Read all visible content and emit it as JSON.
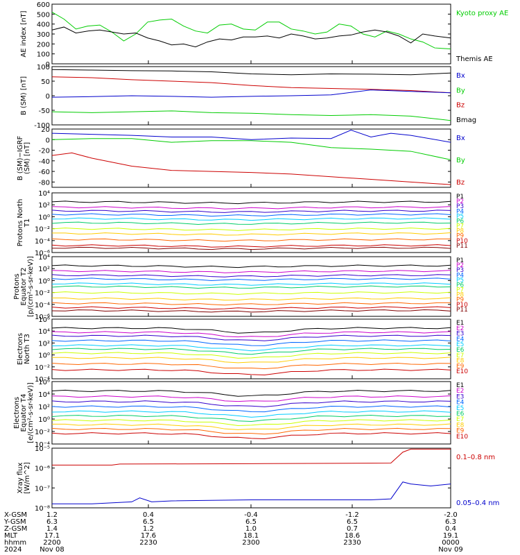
{
  "chart_data": [
    {
      "type": "line",
      "ylabel": "AE index [nT]",
      "ylim": [
        0,
        600
      ],
      "yticks": [
        "0",
        "100",
        "200",
        "300",
        "400",
        "500",
        "600"
      ],
      "legend": [
        {
          "name": "Kyoto proxy AE",
          "color": "#00cc00"
        },
        {
          "name": "Themis AE",
          "color": "#000000"
        }
      ],
      "series": [
        {
          "name": "Kyoto proxy AE",
          "color": "#00cc00",
          "x": [
            0,
            0.03,
            0.06,
            0.09,
            0.12,
            0.15,
            0.18,
            0.21,
            0.24,
            0.27,
            0.3,
            0.33,
            0.36,
            0.39,
            0.42,
            0.45,
            0.48,
            0.51,
            0.54,
            0.57,
            0.6,
            0.63,
            0.66,
            0.69,
            0.72,
            0.75,
            0.78,
            0.81,
            0.84,
            0.87,
            0.9,
            0.93,
            0.96,
            1
          ],
          "y": [
            520,
            450,
            350,
            380,
            390,
            320,
            230,
            300,
            420,
            440,
            450,
            380,
            330,
            310,
            390,
            400,
            350,
            340,
            420,
            420,
            350,
            330,
            300,
            320,
            400,
            380,
            300,
            270,
            330,
            300,
            250,
            220,
            160,
            150
          ]
        },
        {
          "name": "Themis AE",
          "color": "#000000",
          "x": [
            0,
            0.03,
            0.06,
            0.09,
            0.12,
            0.15,
            0.18,
            0.21,
            0.24,
            0.27,
            0.3,
            0.33,
            0.36,
            0.39,
            0.42,
            0.45,
            0.48,
            0.51,
            0.54,
            0.57,
            0.6,
            0.63,
            0.66,
            0.69,
            0.72,
            0.75,
            0.78,
            0.81,
            0.84,
            0.87,
            0.9,
            0.93,
            0.96,
            1
          ],
          "y": [
            340,
            370,
            310,
            330,
            340,
            320,
            300,
            310,
            260,
            230,
            190,
            200,
            170,
            220,
            250,
            240,
            270,
            270,
            280,
            260,
            300,
            280,
            250,
            260,
            280,
            290,
            320,
            340,
            320,
            280,
            210,
            300,
            280,
            260
          ]
        }
      ]
    },
    {
      "type": "line",
      "ylabel": "B (SM) [nT]",
      "ylim": [
        -100,
        100
      ],
      "yticks": [
        "100",
        "50",
        "0",
        "-50",
        "-100"
      ],
      "legend": [
        {
          "name": "Bx",
          "color": "#0000cc"
        },
        {
          "name": "By",
          "color": "#00cc00"
        },
        {
          "name": "Bz",
          "color": "#cc0000"
        },
        {
          "name": "Bmag",
          "color": "#000000"
        }
      ],
      "series": [
        {
          "name": "Bmag",
          "color": "#000000",
          "x": [
            0,
            0.1,
            0.2,
            0.3,
            0.4,
            0.5,
            0.6,
            0.7,
            0.8,
            0.9,
            1
          ],
          "y": [
            90,
            88,
            86,
            85,
            82,
            75,
            72,
            75,
            74,
            72,
            78
          ]
        },
        {
          "name": "Bz",
          "color": "#cc0000",
          "x": [
            0,
            0.1,
            0.2,
            0.3,
            0.4,
            0.5,
            0.6,
            0.7,
            0.8,
            0.9,
            1
          ],
          "y": [
            65,
            62,
            55,
            50,
            45,
            35,
            28,
            25,
            22,
            18,
            10
          ]
        },
        {
          "name": "Bx",
          "color": "#0000cc",
          "x": [
            0,
            0.1,
            0.2,
            0.3,
            0.4,
            0.5,
            0.6,
            0.7,
            0.8,
            0.9,
            1
          ],
          "y": [
            -5,
            -3,
            0,
            -2,
            -5,
            -2,
            0,
            3,
            20,
            15,
            10
          ]
        },
        {
          "name": "By",
          "color": "#00cc00",
          "x": [
            0,
            0.1,
            0.2,
            0.3,
            0.4,
            0.5,
            0.6,
            0.7,
            0.8,
            0.9,
            1
          ],
          "y": [
            -55,
            -58,
            -55,
            -52,
            -58,
            -60,
            -65,
            -68,
            -65,
            -70,
            -85
          ]
        }
      ]
    },
    {
      "type": "line",
      "ylabel": "B (SM)−IGRF (SM) [nT]",
      "ylim": [
        -90,
        20
      ],
      "yticks": [
        "20",
        "0",
        "-20",
        "-40",
        "-60",
        "-80"
      ],
      "legend": [
        {
          "name": "Bx",
          "color": "#0000cc"
        },
        {
          "name": "By",
          "color": "#00cc00"
        },
        {
          "name": "Bz",
          "color": "#cc0000"
        }
      ],
      "series": [
        {
          "name": "Bx",
          "color": "#0000cc",
          "x": [
            0,
            0.1,
            0.2,
            0.3,
            0.4,
            0.5,
            0.6,
            0.7,
            0.75,
            0.8,
            0.85,
            0.9,
            1
          ],
          "y": [
            12,
            10,
            8,
            5,
            5,
            0,
            3,
            2,
            18,
            5,
            12,
            8,
            -5
          ]
        },
        {
          "name": "By",
          "color": "#00cc00",
          "x": [
            0,
            0.1,
            0.2,
            0.3,
            0.4,
            0.5,
            0.6,
            0.7,
            0.8,
            0.9,
            1
          ],
          "y": [
            0,
            2,
            2,
            -5,
            -2,
            -2,
            -5,
            -15,
            -18,
            -22,
            -38
          ]
        },
        {
          "name": "Bz",
          "color": "#cc0000",
          "x": [
            0,
            0.05,
            0.1,
            0.2,
            0.3,
            0.4,
            0.5,
            0.6,
            0.7,
            0.8,
            0.9,
            1
          ],
          "y": [
            -30,
            -25,
            -35,
            -50,
            -58,
            -60,
            -62,
            -65,
            -70,
            -75,
            -80,
            -85
          ]
        }
      ]
    },
    {
      "type": "line",
      "ylabel": "Protons North T1",
      "log": true,
      "ylim_exp": [
        -6,
        4
      ],
      "yticks": [
        "10^4",
        "10^2",
        "10^0",
        "10^-2",
        "10^-4",
        "10^-6"
      ],
      "legend": [
        "P1",
        "P2",
        "P3",
        "P4",
        "P5",
        "P6",
        "P7",
        "P8",
        "P9",
        "P10",
        "P11"
      ],
      "levels": [
        2.5,
        1.6,
        1.0,
        0.4,
        -0.3,
        -1.0,
        -2.0,
        -2.8,
        -3.8,
        -4.8,
        -5.2
      ],
      "colors": [
        "#000000",
        "#cc00cc",
        "#3300cc",
        "#0066ff",
        "#00ccff",
        "#00cc66",
        "#ccff00",
        "#ffcc00",
        "#ff6600",
        "#cc0000",
        "#800000"
      ]
    },
    {
      "type": "line",
      "ylabel": "Protons Equator T2 [p/(cm²-s-sr-keV)]",
      "log": true,
      "ylim_exp": [
        -6,
        4
      ],
      "yticks": [
        "10^4",
        "10^2",
        "10^0",
        "10^-2",
        "10^-4",
        "10^-6"
      ],
      "legend": [
        "P1",
        "P2",
        "P3",
        "P4",
        "P5",
        "P6",
        "P7",
        "P8",
        "P9",
        "P10",
        "P11"
      ],
      "levels": [
        2.5,
        1.6,
        0.9,
        0.3,
        -0.5,
        -1.0,
        -2.0,
        -3.0,
        -3.8,
        -4.5,
        -5.0
      ],
      "colors": [
        "#000000",
        "#cc00cc",
        "#3300cc",
        "#0066ff",
        "#00ccff",
        "#00cc66",
        "#ccff00",
        "#ffcc00",
        "#ff6600",
        "#cc0000",
        "#800000"
      ]
    },
    {
      "type": "line",
      "ylabel": "Electrons North T3",
      "log": true,
      "ylim_exp": [
        -4,
        6
      ],
      "yticks": [
        "10^6",
        "10^4",
        "10^2",
        "10^0",
        "10^-2",
        "10^-4"
      ],
      "legend": [
        "E1",
        "E2",
        "E3",
        "E4",
        "E5",
        "E6",
        "E7",
        "E8",
        "E9",
        "E10"
      ],
      "levels": [
        4.5,
        3.8,
        3.2,
        2.4,
        1.6,
        1.0,
        0.3,
        -0.5,
        -1.5,
        -2.5
      ],
      "colors": [
        "#000000",
        "#cc00cc",
        "#3300cc",
        "#0066ff",
        "#00ccff",
        "#00cc66",
        "#ccff00",
        "#ffcc00",
        "#ff6600",
        "#cc0000"
      ]
    },
    {
      "type": "line",
      "ylabel": "Electrons Equator T4 [e/(cm²-s-sr-keV)]",
      "log": true,
      "ylim_exp": [
        -4,
        6
      ],
      "yticks": [
        "10^6",
        "10^4",
        "10^2",
        "10^0",
        "10^-2",
        "10^-4"
      ],
      "legend": [
        "E1",
        "E2",
        "E3",
        "E4",
        "E5",
        "E6",
        "E7",
        "E8",
        "E9",
        "E10"
      ],
      "levels": [
        4.5,
        3.6,
        2.8,
        2.0,
        1.2,
        0.5,
        -0.2,
        -0.9,
        -1.6,
        -2.3
      ],
      "colors": [
        "#000000",
        "#cc00cc",
        "#3300cc",
        "#0066ff",
        "#00ccff",
        "#00cc66",
        "#ccff00",
        "#ffcc00",
        "#ff6600",
        "#cc0000"
      ]
    },
    {
      "type": "line",
      "ylabel": "Xray flux [W/m^2]",
      "log": true,
      "ylim_exp": [
        -8,
        -5
      ],
      "yticks": [
        "10^-5",
        "10^-6",
        "10^-7",
        "10^-8"
      ],
      "legend": [
        {
          "name": "0.1–0.8 nm",
          "color": "#cc0000"
        },
        {
          "name": "0.05–0.4 nm",
          "color": "#0000cc"
        }
      ],
      "series": [
        {
          "name": "0.1–0.8 nm",
          "color": "#cc0000",
          "x": [
            0,
            0.15,
            0.17,
            0.5,
            0.85,
            0.88,
            0.9,
            1
          ],
          "y": [
            -5.85,
            -5.85,
            -5.8,
            -5.78,
            -5.75,
            -5.2,
            -5.05,
            -5.05
          ]
        },
        {
          "name": "0.05–0.4 nm",
          "color": "#0000cc",
          "x": [
            0,
            0.1,
            0.2,
            0.22,
            0.25,
            0.3,
            0.5,
            0.8,
            0.85,
            0.88,
            0.9,
            0.95,
            1
          ],
          "y": [
            -7.8,
            -7.8,
            -7.7,
            -7.5,
            -7.7,
            -7.65,
            -7.6,
            -7.6,
            -7.55,
            -6.7,
            -6.8,
            -6.9,
            -6.8
          ]
        }
      ]
    }
  ],
  "footer": {
    "rows": [
      {
        "label": "X-GSM",
        "values": [
          "1.2",
          "0.4",
          "-0.4",
          "-1.2",
          "-2.0"
        ]
      },
      {
        "label": "Y-GSM",
        "values": [
          "6.3",
          "6.5",
          "6.5",
          "6.5",
          "6.3"
        ]
      },
      {
        "label": "Z-GSM",
        "values": [
          "1.4",
          "1.2",
          "1.0",
          "0.7",
          "0.4"
        ]
      },
      {
        "label": "MLT",
        "values": [
          "17.1",
          "17.6",
          "18.1",
          "18.6",
          "19.1"
        ]
      },
      {
        "label": "hhmm",
        "values": [
          "2200",
          "2230",
          "2300",
          "2330",
          "0000"
        ]
      },
      {
        "label": "2024",
        "values": [
          "Nov 08",
          "",
          "",
          "",
          "Nov 09"
        ]
      }
    ]
  }
}
